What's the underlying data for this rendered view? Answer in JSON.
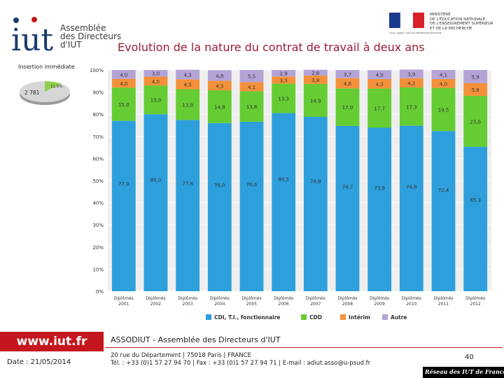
{
  "header": {
    "logo_text": [
      "Assemblée",
      "des Directeurs",
      "d'IUT"
    ],
    "logo_brand": "iut",
    "ministry_text": [
      "MINISTÈRE",
      "DE L'ÉDUCATION NATIONALE",
      "DE L'ENSEIGNEMENT SUPÉRIEUR",
      "ET DE LA RECHERCHE"
    ],
    "ministry_caption": "Liberté • Égalité • Fraternité RÉPUBLIQUE FRANÇAISE",
    "title": "Evolution de la nature du contrat de travail à deux ans"
  },
  "insertion": {
    "title": "Insertion immédiate",
    "big_label": "2 781",
    "small_label": "11,5%",
    "small_fraction": 0.115
  },
  "chart_data": {
    "type": "bar",
    "stacked": true,
    "percent": true,
    "categories": [
      "Diplômés 2001",
      "Diplômés 2002",
      "Diplômés 2003",
      "Diplômés 2004",
      "Diplômés 2005",
      "Diplômés 2006",
      "Diplômés 2007",
      "Diplômés 2008",
      "Diplômés 2009",
      "Diplômés 2010",
      "Diplômés 2011",
      "Diplômés 2012"
    ],
    "series": [
      {
        "name": "CDI, T.I., fonctionnaire",
        "color": "#2e9fdd",
        "values": [
          77.0,
          80.0,
          77.4,
          76.0,
          76.6,
          80.5,
          78.8,
          74.7,
          73.9,
          74.8,
          72.4,
          65.3
        ],
        "labels": [
          "77,0",
          "80,0",
          "77,4",
          "76,0",
          "76,6",
          "80,5",
          "78,8",
          "74,7",
          "73,9",
          "74,8",
          "72,4",
          "65,3"
        ]
      },
      {
        "name": "CDD",
        "color": "#66cc33",
        "values": [
          15.0,
          13.0,
          13.9,
          14.8,
          13.8,
          13.3,
          14.9,
          17.0,
          17.7,
          17.3,
          19.5,
          23.0
        ],
        "labels": [
          "15,0",
          "13,0",
          "13,9",
          "14,8",
          "13,8",
          "13,3",
          "14,9",
          "17,0",
          "17,7",
          "17,3",
          "19,5",
          "23,0"
        ]
      },
      {
        "name": "Intérim",
        "color": "#f3913a",
        "values": [
          4.0,
          4.0,
          4.5,
          4.3,
          4.1,
          3.3,
          3.8,
          4.6,
          4.3,
          4.2,
          4.0,
          5.8
        ],
        "labels": [
          "4,0",
          "4,0",
          "4,5",
          "4,3",
          "4,1",
          "3,3",
          "3,8",
          "4,6",
          "4,3",
          "4,2",
          "4,0",
          "5,8"
        ]
      },
      {
        "name": "Autre",
        "color": "#b3a3d6",
        "values": [
          4.0,
          3.0,
          4.3,
          4.8,
          5.5,
          2.9,
          2.6,
          3.7,
          4.0,
          3.9,
          4.1,
          5.9
        ],
        "labels": [
          "4,0",
          "3,0",
          "4,3",
          "4,8",
          "5,5",
          "2,9",
          "2,6",
          "3,7",
          "4,0",
          "3,9",
          "4,1",
          "5,9"
        ]
      }
    ],
    "yticks": [
      "0%",
      "10%",
      "20%",
      "30%",
      "40%",
      "50%",
      "60%",
      "70%",
      "80%",
      "90%",
      "100%"
    ],
    "ylim": [
      0,
      100
    ],
    "legend_position": "bottom"
  },
  "footer": {
    "url": "www.iut.fr",
    "date": "Date : 21/05/2014",
    "association": "ASSODIUT - Assemblée des Directeurs d'IUT",
    "address_line1": "20 rue du Département | 75018 Paris | FRANCE",
    "address_line2": "Tél. : +33 (0)1 57 27 94 70 | Fax : +33 (0)1 57 27 94 71 | E-mail : adiut.asso@u-psud.fr",
    "page_number": "40",
    "network": "Réseau des IUT de France"
  }
}
